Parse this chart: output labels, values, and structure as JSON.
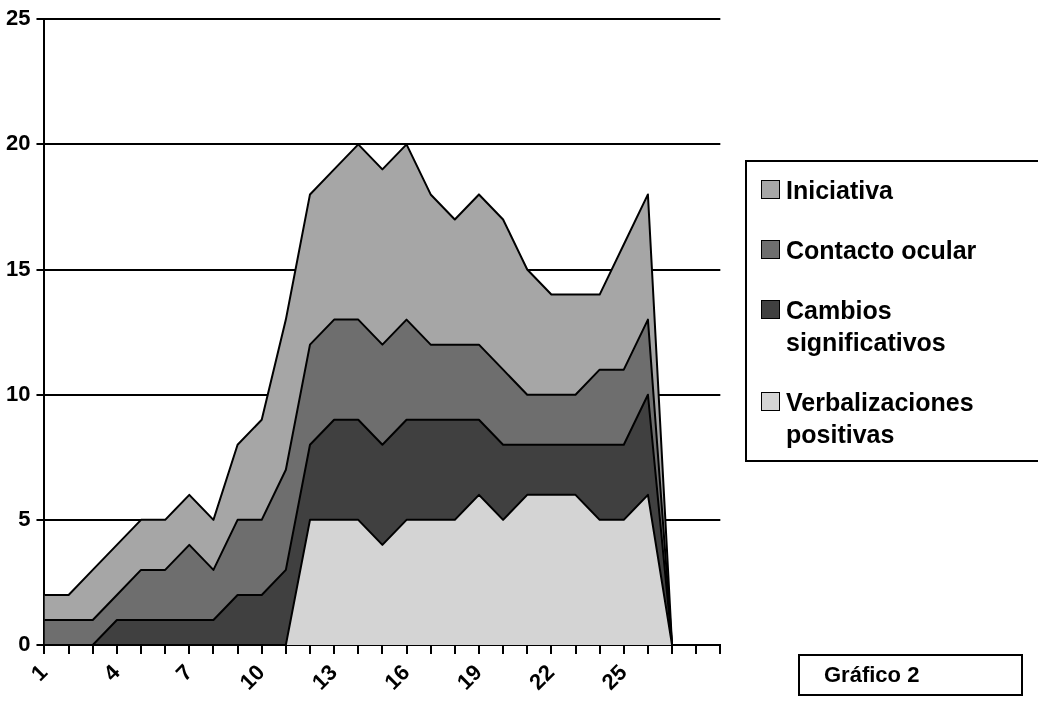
{
  "chart_data": {
    "type": "area",
    "stacked": true,
    "grid": "y",
    "legend": "right",
    "categories": [
      "1",
      null,
      null,
      "4",
      null,
      null,
      "7",
      null,
      null,
      "10",
      null,
      null,
      "13",
      null,
      null,
      "16",
      null,
      null,
      "19",
      null,
      null,
      "22",
      null,
      null,
      "25",
      null,
      null,
      null,
      null
    ],
    "ylim": [
      0,
      25
    ],
    "yticks": [
      0,
      5,
      10,
      15,
      20,
      25
    ],
    "series": [
      {
        "name": "Verbalizaciones positivas",
        "color": "#d4d4d4",
        "values": [
          0,
          0,
          0,
          0,
          0,
          0,
          0,
          0,
          0,
          0,
          0,
          5,
          5,
          5,
          4,
          5,
          5,
          5,
          6,
          5,
          6,
          6,
          6,
          5,
          5,
          6,
          0,
          null,
          null
        ]
      },
      {
        "name": "Cambios significativos",
        "color": "#404040",
        "values": [
          0,
          0,
          0,
          1,
          1,
          1,
          1,
          1,
          2,
          2,
          3,
          3,
          4,
          4,
          4,
          4,
          4,
          4,
          3,
          3,
          2,
          2,
          2,
          3,
          3,
          4,
          0,
          null,
          null
        ]
      },
      {
        "name": "Contacto ocular",
        "color": "#6e6e6e",
        "values": [
          1,
          1,
          1,
          1,
          2,
          2,
          3,
          2,
          3,
          3,
          4,
          4,
          4,
          4,
          4,
          4,
          3,
          3,
          3,
          3,
          2,
          2,
          2,
          3,
          3,
          3,
          0,
          null,
          null
        ]
      },
      {
        "name": "Iniciativa",
        "color": "#a6a6a6",
        "values": [
          1,
          1,
          2,
          2,
          2,
          2,
          2,
          2,
          3,
          4,
          6,
          6,
          6,
          7,
          7,
          7,
          6,
          5,
          6,
          6,
          5,
          4,
          4,
          3,
          5,
          5,
          0,
          null,
          null
        ]
      }
    ],
    "annotations": [
      "Gráfico 2"
    ]
  }
}
